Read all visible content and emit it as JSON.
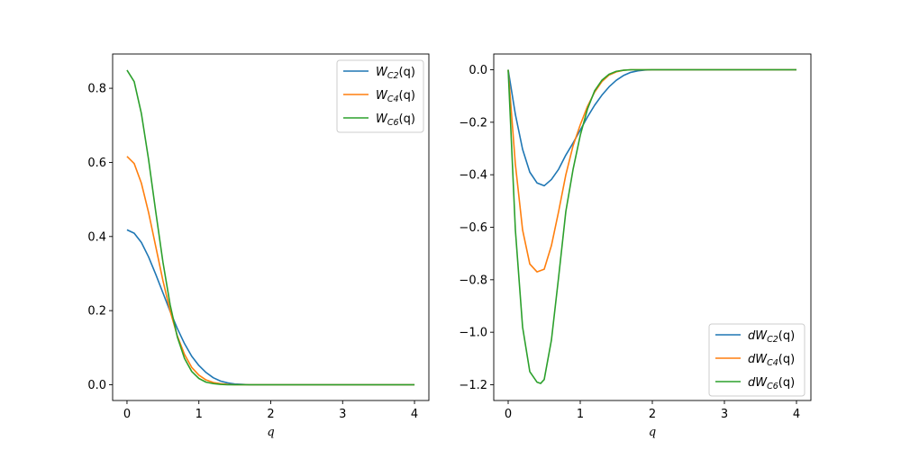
{
  "chart_data": [
    {
      "type": "line",
      "xlabel": "q",
      "ylabel": "",
      "xlim": [
        -0.2,
        4.2
      ],
      "ylim": [
        -0.0425,
        0.8925
      ],
      "xticks": [
        0,
        1,
        2,
        3,
        4
      ],
      "xtick_labels": [
        "0",
        "1",
        "2",
        "3",
        "4"
      ],
      "yticks": [
        0.0,
        0.2,
        0.4,
        0.6,
        0.8
      ],
      "ytick_labels": [
        "0.0",
        "0.2",
        "0.4",
        "0.6",
        "0.8"
      ],
      "grid": false,
      "legend_position": "upper right",
      "series": [
        {
          "name": "W_C2(q)",
          "name_parts": [
            "W",
            "C2",
            "(q)"
          ],
          "color": "#1f77b4",
          "x": [
            0,
            0.1,
            0.2,
            0.3,
            0.4,
            0.5,
            0.6,
            0.7,
            0.8,
            0.9,
            1.0,
            1.1,
            1.2,
            1.3,
            1.4,
            1.5,
            1.6,
            1.7,
            1.8,
            1.9,
            2.0,
            2.5,
            3.0,
            3.5,
            4.0
          ],
          "y": [
            0.418,
            0.409,
            0.384,
            0.345,
            0.298,
            0.248,
            0.198,
            0.152,
            0.111,
            0.077,
            0.052,
            0.033,
            0.019,
            0.01,
            0.005,
            0.002,
            0.001,
            0.0,
            0.0,
            0.0,
            0.0,
            0.0,
            0.0,
            0.0,
            0.0
          ]
        },
        {
          "name": "W_C4(q)",
          "name_parts": [
            "W",
            "C4",
            "(q)"
          ],
          "color": "#ff7f0e",
          "x": [
            0,
            0.1,
            0.2,
            0.3,
            0.4,
            0.5,
            0.6,
            0.7,
            0.8,
            0.9,
            1.0,
            1.1,
            1.2,
            1.3,
            1.4,
            1.5,
            1.6,
            1.7,
            1.8,
            1.9,
            2.0,
            2.5,
            3.0,
            3.5,
            4.0
          ],
          "y": [
            0.616,
            0.597,
            0.544,
            0.465,
            0.373,
            0.281,
            0.199,
            0.132,
            0.082,
            0.047,
            0.026,
            0.013,
            0.006,
            0.003,
            0.001,
            0.0,
            0.0,
            0.0,
            0.0,
            0.0,
            0.0,
            0.0,
            0.0,
            0.0,
            0.0
          ]
        },
        {
          "name": "W_C6(q)",
          "name_parts": [
            "W",
            "C6",
            "(q)"
          ],
          "color": "#2ca02c",
          "x": [
            0,
            0.1,
            0.2,
            0.3,
            0.4,
            0.5,
            0.6,
            0.7,
            0.8,
            0.9,
            1.0,
            1.1,
            1.2,
            1.3,
            1.4,
            1.5,
            1.6,
            1.7,
            1.8,
            1.9,
            2.0,
            2.5,
            3.0,
            3.5,
            4.0
          ],
          "y": [
            0.849,
            0.818,
            0.732,
            0.608,
            0.467,
            0.331,
            0.216,
            0.129,
            0.071,
            0.036,
            0.017,
            0.007,
            0.003,
            0.001,
            0.0,
            0.0,
            0.0,
            0.0,
            0.0,
            0.0,
            0.0,
            0.0,
            0.0,
            0.0,
            0.0
          ]
        }
      ]
    },
    {
      "type": "line",
      "xlabel": "q",
      "ylabel": "",
      "xlim": [
        -0.2,
        4.2
      ],
      "ylim": [
        -1.26,
        0.06
      ],
      "xticks": [
        0,
        1,
        2,
        3,
        4
      ],
      "xtick_labels": [
        "0",
        "1",
        "2",
        "3",
        "4"
      ],
      "yticks": [
        0.0,
        -0.2,
        -0.4,
        -0.6,
        -0.8,
        -1.0,
        -1.2
      ],
      "ytick_labels": [
        "0.0",
        "−0.2",
        "−0.4",
        "−0.6",
        "−0.8",
        "−1.0",
        "−1.2"
      ],
      "grid": false,
      "legend_position": "lower right",
      "series": [
        {
          "name": "dW_C2(q)",
          "name_parts": [
            "dW",
            "C2",
            "(q)"
          ],
          "color": "#1f77b4",
          "x": [
            0,
            0.1,
            0.2,
            0.3,
            0.4,
            0.5,
            0.6,
            0.7,
            0.8,
            0.9,
            1.0,
            1.1,
            1.2,
            1.3,
            1.4,
            1.5,
            1.6,
            1.7,
            1.8,
            1.9,
            2.0,
            2.5,
            3.0,
            3.5,
            4.0
          ],
          "y": [
            0.0,
            -0.17,
            -0.303,
            -0.39,
            -0.431,
            -0.442,
            -0.418,
            -0.379,
            -0.325,
            -0.279,
            -0.23,
            -0.18,
            -0.135,
            -0.097,
            -0.065,
            -0.04,
            -0.022,
            -0.01,
            -0.004,
            -0.001,
            0.0,
            0.0,
            0.0,
            0.0,
            0.0
          ]
        },
        {
          "name": "dW_C4(q)",
          "name_parts": [
            "dW",
            "C4",
            "(q)"
          ],
          "color": "#ff7f0e",
          "x": [
            0,
            0.1,
            0.2,
            0.3,
            0.4,
            0.5,
            0.6,
            0.7,
            0.8,
            0.9,
            1.0,
            1.1,
            1.2,
            1.3,
            1.4,
            1.5,
            1.6,
            1.7,
            1.8,
            1.9,
            2.0,
            2.5,
            3.0,
            3.5,
            4.0
          ],
          "y": [
            0.0,
            -0.36,
            -0.61,
            -0.74,
            -0.77,
            -0.76,
            -0.67,
            -0.54,
            -0.4,
            -0.29,
            -0.21,
            -0.14,
            -0.085,
            -0.045,
            -0.02,
            -0.008,
            -0.002,
            0.0,
            0.0,
            0.0,
            0.0,
            0.0,
            0.0,
            0.0,
            0.0
          ]
        },
        {
          "name": "dW_C6(q)",
          "name_parts": [
            "dW",
            "C6",
            "(q)"
          ],
          "color": "#2ca02c",
          "x": [
            0,
            0.1,
            0.2,
            0.3,
            0.4,
            0.45,
            0.5,
            0.6,
            0.7,
            0.8,
            0.9,
            1.0,
            1.1,
            1.2,
            1.3,
            1.4,
            1.5,
            1.6,
            1.7,
            1.8,
            1.9,
            2.0,
            2.5,
            3.0,
            3.5,
            4.0
          ],
          "y": [
            0.0,
            -0.61,
            -0.98,
            -1.15,
            -1.19,
            -1.195,
            -1.18,
            -1.03,
            -0.79,
            -0.54,
            -0.38,
            -0.25,
            -0.15,
            -0.08,
            -0.04,
            -0.017,
            -0.006,
            -0.002,
            0.0,
            0.0,
            0.0,
            0.0,
            0.0,
            0.0,
            0.0,
            0.0
          ]
        }
      ]
    }
  ]
}
